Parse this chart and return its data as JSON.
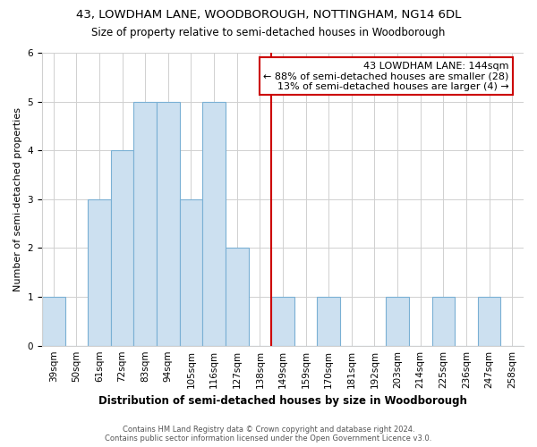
{
  "title_line1": "43, LOWDHAM LANE, WOODBOROUGH, NOTTINGHAM, NG14 6DL",
  "title_line2": "Size of property relative to semi-detached houses in Woodborough",
  "xlabel": "Distribution of semi-detached houses by size in Woodborough",
  "ylabel": "Number of semi-detached properties",
  "bins": [
    "39sqm",
    "50sqm",
    "61sqm",
    "72sqm",
    "83sqm",
    "94sqm",
    "105sqm",
    "116sqm",
    "127sqm",
    "138sqm",
    "149sqm",
    "159sqm",
    "170sqm",
    "181sqm",
    "192sqm",
    "203sqm",
    "214sqm",
    "225sqm",
    "236sqm",
    "247sqm",
    "258sqm"
  ],
  "counts": [
    1,
    0,
    3,
    4,
    5,
    5,
    3,
    5,
    2,
    0,
    1,
    0,
    1,
    0,
    0,
    1,
    0,
    1,
    0,
    1,
    0
  ],
  "bar_color": "#cce0f0",
  "bar_edge_color": "#7ab0d4",
  "annotation_line1": "43 LOWDHAM LANE: 144sqm",
  "annotation_line2": "← 88% of semi-detached houses are smaller (28)",
  "annotation_line3": "13% of semi-detached houses are larger (4) →",
  "annotation_box_color": "#cc0000",
  "vline_color": "#cc0000",
  "vline_x_index": 9.5,
  "ylim": [
    0,
    6
  ],
  "yticks": [
    0,
    1,
    2,
    3,
    4,
    5,
    6
  ],
  "footer1": "Contains HM Land Registry data © Crown copyright and database right 2024.",
  "footer2": "Contains public sector information licensed under the Open Government Licence v3.0.",
  "bg_color": "#ffffff",
  "grid_color": "#d0d0d0",
  "title1_fontsize": 9.5,
  "title2_fontsize": 8.5,
  "xlabel_fontsize": 8.5,
  "ylabel_fontsize": 8,
  "tick_fontsize": 7.5,
  "annotation_fontsize": 8,
  "footer_fontsize": 6
}
